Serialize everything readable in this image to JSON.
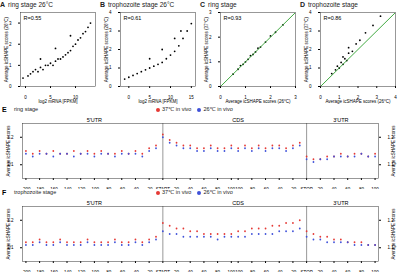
{
  "chart_data": [
    {
      "type": "scatter",
      "panel": "A",
      "title": "ring stage 26°C",
      "annotation": "R=0.55",
      "x_label": "log2 mRNA [FPKM]",
      "y_label": "Average icSHAPE scores (26°C)",
      "xlim": [
        -1,
        14
      ],
      "xticks": [
        0,
        5,
        10
      ],
      "ylim": [
        0,
        3.5
      ],
      "yticks": [
        0,
        1,
        2,
        3
      ],
      "series": [
        {
          "type": "scatter",
          "color": "#000000",
          "x": [
            -0.5,
            0.5,
            1,
            1.5,
            2,
            2.5,
            3,
            3.5,
            4,
            4.5,
            5,
            5.5,
            6,
            6.5,
            7,
            7.5,
            8,
            8.5,
            9,
            9.5,
            10,
            10.5,
            11,
            11.5,
            12,
            12.5,
            13,
            3,
            6,
            9
          ],
          "values": [
            0.4,
            0.5,
            0.6,
            0.7,
            0.8,
            0.7,
            0.9,
            0.8,
            1.0,
            1.0,
            1.1,
            1.0,
            1.2,
            1.3,
            1.3,
            1.4,
            1.5,
            1.6,
            1.7,
            1.9,
            2.0,
            2.2,
            2.3,
            2.5,
            2.6,
            2.8,
            3.0,
            1.3,
            1.8,
            2.4
          ]
        }
      ]
    },
    {
      "type": "scatter",
      "panel": "B",
      "title": "trophozoite stage 26°C",
      "annotation": "R=0.61",
      "x_label": "log2 mRNA [FPKM]",
      "y_label": "Average icSHAPE scores (26°C)",
      "xlim": [
        -2,
        16
      ],
      "xticks": [
        0,
        5,
        10,
        15
      ],
      "ylim": [
        0,
        4
      ],
      "yticks": [
        0,
        1,
        2,
        3,
        4
      ],
      "series": [
        {
          "type": "scatter",
          "color": "#000000",
          "x": [
            -1,
            0,
            1,
            2,
            3,
            4,
            5,
            6,
            7,
            8,
            9,
            10,
            11,
            12,
            13,
            14,
            15,
            5,
            8,
            11,
            12.5
          ],
          "values": [
            0.4,
            0.5,
            0.6,
            0.7,
            0.8,
            0.9,
            1.0,
            1.1,
            1.2,
            1.3,
            1.5,
            1.7,
            1.9,
            2.2,
            2.6,
            3.0,
            3.4,
            1.5,
            2.0,
            2.6,
            3.0
          ]
        }
      ]
    },
    {
      "type": "scatter",
      "panel": "C",
      "title": "ring stage",
      "annotation": "R=0.93",
      "x_label": "Average icSHAPE scores (26°C)",
      "y_label": "Average icSHAPE scores (37°C)",
      "xlim": [
        0,
        3
      ],
      "xticks": [
        0,
        1,
        2,
        3
      ],
      "ylim": [
        0,
        3
      ],
      "yticks": [
        0,
        1,
        2,
        3
      ],
      "series": [
        {
          "type": "scatter",
          "color": "#000000",
          "x": [
            0.5,
            0.7,
            0.8,
            0.9,
            1.0,
            1.1,
            1.2,
            1.3,
            1.4,
            1.5,
            1.6,
            1.8,
            2.0,
            2.2,
            2.5
          ],
          "values": [
            0.5,
            0.7,
            0.85,
            0.9,
            1.0,
            1.1,
            1.25,
            1.3,
            1.4,
            1.55,
            1.6,
            1.8,
            2.05,
            2.2,
            2.5
          ]
        },
        {
          "type": "line",
          "color": "#2ca02c",
          "x": [
            0,
            3
          ],
          "values": [
            0,
            3
          ]
        }
      ]
    },
    {
      "type": "scatter",
      "panel": "D",
      "title": "trophozoite stage",
      "annotation": "R=0.86",
      "x_label": "Average icSHAPE scores (26°C)",
      "y_label": "Average icSHAPE scores (37°C)",
      "xlim": [
        0,
        4
      ],
      "xticks": [
        0,
        1,
        2,
        3,
        4
      ],
      "ylim": [
        0,
        4
      ],
      "yticks": [
        0,
        1,
        2,
        3,
        4
      ],
      "series": [
        {
          "type": "scatter",
          "color": "#000000",
          "x": [
            0.6,
            0.8,
            0.9,
            1.0,
            1.1,
            1.2,
            1.3,
            1.4,
            1.5,
            1.7,
            1.9,
            2.1,
            2.4,
            2.8,
            3.2,
            1.2,
            1.5
          ],
          "values": [
            0.7,
            0.9,
            1.1,
            1.0,
            1.3,
            1.2,
            1.5,
            1.4,
            1.8,
            1.9,
            2.3,
            2.5,
            2.9,
            3.3,
            3.8,
            1.6,
            2.1
          ]
        },
        {
          "type": "line",
          "color": "#2ca02c",
          "x": [
            0,
            4
          ],
          "values": [
            0,
            4
          ]
        }
      ]
    },
    {
      "type": "scatter",
      "panel": "E",
      "title": "ring stage",
      "regions": [
        "5'UTR",
        "CDS",
        "3'UTR"
      ],
      "y_label": "Average icSHAPE scores",
      "ylim": [
        1.05,
        1.25
      ],
      "yticks": [
        1.1,
        1.2
      ],
      "categories": [
        "-200",
        null,
        "-180",
        null,
        "-160",
        null,
        "-140",
        null,
        "-120",
        null,
        "-100",
        null,
        "-80",
        null,
        "-60",
        null,
        "-40",
        null,
        "-20",
        null,
        "START",
        null,
        "20",
        null,
        "40",
        null,
        "60",
        null,
        "80",
        null,
        "100",
        "-100",
        null,
        "-80",
        null,
        "-60",
        null,
        "-40",
        null,
        "-20",
        null,
        "STOP",
        null,
        "20",
        null,
        "40",
        null,
        "60",
        null,
        "80",
        null,
        "100"
      ],
      "series": [
        {
          "name": "37℃ in vivo",
          "color": "#e53935",
          "values": [
            1.15,
            1.14,
            1.15,
            1.14,
            1.15,
            1.14,
            1.14,
            1.15,
            1.14,
            1.15,
            1.14,
            1.15,
            1.14,
            1.14,
            1.15,
            1.14,
            1.15,
            1.14,
            1.16,
            1.17,
            1.21,
            1.19,
            1.18,
            1.17,
            1.17,
            1.16,
            1.16,
            1.17,
            1.16,
            1.16,
            1.17,
            1.16,
            1.17,
            1.16,
            1.17,
            1.16,
            1.17,
            1.17,
            1.16,
            1.17,
            1.18,
            1.13,
            1.12,
            1.12,
            1.13,
            1.13,
            1.14,
            1.13,
            1.14,
            1.14,
            1.13,
            1.14
          ]
        },
        {
          "name": "26℃ in vivo",
          "color": "#3f51d9",
          "values": [
            1.14,
            1.13,
            1.14,
            1.14,
            1.13,
            1.14,
            1.14,
            1.13,
            1.14,
            1.14,
            1.13,
            1.14,
            1.14,
            1.13,
            1.14,
            1.14,
            1.14,
            1.13,
            1.15,
            1.16,
            1.2,
            1.18,
            1.17,
            1.16,
            1.16,
            1.15,
            1.15,
            1.16,
            1.15,
            1.15,
            1.16,
            1.15,
            1.16,
            1.15,
            1.16,
            1.15,
            1.16,
            1.16,
            1.15,
            1.16,
            1.17,
            1.12,
            1.11,
            1.12,
            1.12,
            1.13,
            1.13,
            1.13,
            1.13,
            1.14,
            1.13,
            1.13
          ]
        }
      ]
    },
    {
      "type": "scatter",
      "panel": "F",
      "title": "trophozoite stage",
      "regions": [
        "5'UTR",
        "CDS",
        "3'UTR"
      ],
      "y_label": "Average icSHAPE scores",
      "ylim": [
        1.05,
        1.25
      ],
      "yticks": [
        1.1,
        1.2
      ],
      "categories": [
        "-200",
        null,
        "-180",
        null,
        "-160",
        null,
        "-140",
        null,
        "-120",
        null,
        "-100",
        null,
        "-80",
        null,
        "-60",
        null,
        "-40",
        null,
        "-20",
        null,
        "START",
        null,
        "20",
        null,
        "40",
        null,
        "60",
        null,
        "80",
        null,
        "100",
        "-100",
        null,
        "-80",
        null,
        "-60",
        null,
        "-40",
        null,
        "-20",
        null,
        "STOP",
        null,
        "20",
        null,
        "40",
        null,
        "60",
        null,
        "80",
        null,
        "100"
      ],
      "series": [
        {
          "name": "37℃ in vivo",
          "color": "#e53935",
          "values": [
            1.12,
            1.12,
            1.13,
            1.12,
            1.12,
            1.13,
            1.12,
            1.12,
            1.12,
            1.13,
            1.12,
            1.12,
            1.12,
            1.13,
            1.12,
            1.12,
            1.13,
            1.12,
            1.13,
            1.14,
            1.19,
            1.18,
            1.17,
            1.17,
            1.16,
            1.16,
            1.15,
            1.15,
            1.15,
            1.15,
            1.15,
            1.16,
            1.16,
            1.17,
            1.17,
            1.17,
            1.18,
            1.18,
            1.19,
            1.19,
            1.2,
            1.16,
            1.15,
            1.14,
            1.14,
            1.13,
            1.13,
            1.12,
            1.12,
            1.12,
            1.11,
            1.11
          ]
        },
        {
          "name": "26℃ in vivo",
          "color": "#3f51d9",
          "values": [
            1.11,
            1.11,
            1.12,
            1.11,
            1.11,
            1.12,
            1.11,
            1.11,
            1.11,
            1.12,
            1.11,
            1.11,
            1.11,
            1.12,
            1.11,
            1.11,
            1.12,
            1.11,
            1.12,
            1.13,
            1.16,
            1.15,
            1.15,
            1.14,
            1.14,
            1.14,
            1.14,
            1.14,
            1.13,
            1.14,
            1.14,
            1.14,
            1.14,
            1.15,
            1.15,
            1.15,
            1.15,
            1.16,
            1.16,
            1.16,
            1.17,
            1.14,
            1.13,
            1.13,
            1.12,
            1.12,
            1.12,
            1.12,
            1.11,
            1.11,
            1.11,
            1.11
          ]
        }
      ]
    }
  ]
}
